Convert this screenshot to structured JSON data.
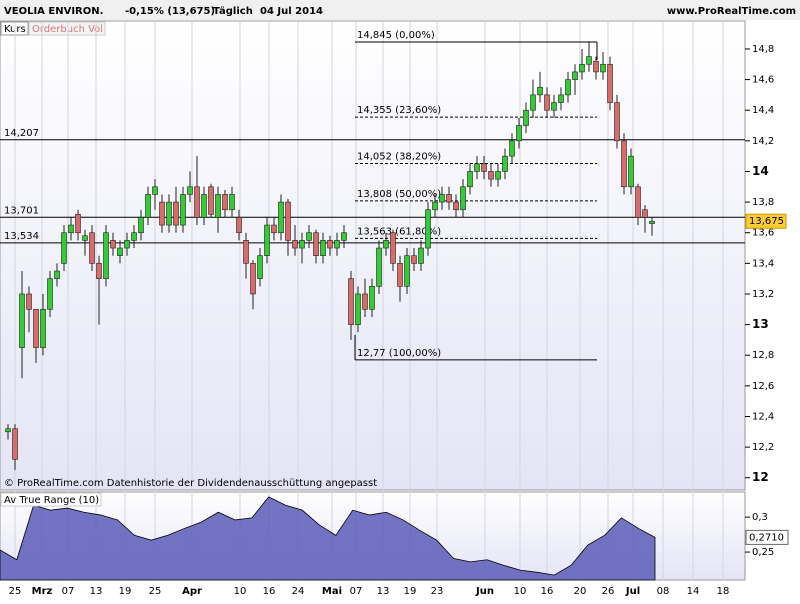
{
  "header": {
    "title": "VEOLIA ENVIRON.",
    "change": "-0,15% (13,675)",
    "period": "Täglich",
    "date": "04 Jul 2014",
    "site": "www.ProRealTime.com"
  },
  "tabs": [
    "Kurs",
    "Orderbuch Vol"
  ],
  "x_labels": [
    "25",
    "Mrz",
    "07",
    "13",
    "19",
    "25",
    "Apr",
    "10",
    "16",
    "24",
    "Mai",
    "07",
    "13",
    "19",
    "23",
    "Jun",
    "10",
    "16",
    "20",
    "26",
    "Jul",
    "08",
    "14",
    "18"
  ],
  "chart_data": [
    {
      "type": "candlestick",
      "open": [
        12.3,
        12.32,
        12.85,
        13.2,
        13.1,
        12.85,
        13.1,
        13.3,
        13.4,
        13.6,
        13.72,
        13.55,
        13.6,
        13.4,
        13.3,
        13.55,
        13.45,
        13.5,
        13.55,
        13.6,
        13.7,
        13.85,
        13.8,
        13.65,
        13.8,
        13.65,
        13.85,
        13.9,
        13.7,
        13.9,
        13.7,
        13.85,
        13.75,
        13.7,
        13.55,
        13.4,
        13.3,
        13.45,
        13.65,
        13.6,
        13.8,
        13.55,
        13.5,
        13.55,
        13.6,
        13.45,
        13.55,
        13.5,
        13.55,
        13.3,
        13.0,
        13.2,
        13.1,
        13.25,
        13.5,
        13.6,
        13.4,
        13.25,
        13.45,
        13.4,
        13.5,
        13.75,
        13.8,
        13.85,
        13.8,
        13.75,
        13.9,
        14.0,
        14.05,
        14.0,
        13.95,
        14.0,
        14.1,
        14.2,
        14.3,
        14.4,
        14.5,
        14.5,
        14.4,
        14.45,
        14.5,
        14.6,
        14.65,
        14.7,
        14.72,
        14.65,
        14.7,
        14.45,
        14.2,
        13.9,
        13.9,
        13.75,
        13.66
      ],
      "high": [
        12.35,
        12.35,
        13.35,
        13.25,
        13.1,
        13.2,
        13.35,
        13.4,
        13.65,
        13.7,
        13.75,
        13.62,
        13.65,
        13.45,
        13.65,
        13.6,
        13.55,
        13.6,
        13.65,
        13.75,
        13.9,
        13.95,
        13.85,
        13.85,
        13.9,
        13.9,
        14.0,
        14.1,
        13.9,
        13.92,
        13.9,
        13.88,
        13.9,
        13.75,
        13.6,
        13.42,
        13.5,
        13.7,
        13.7,
        13.85,
        13.82,
        13.65,
        13.6,
        13.65,
        13.62,
        13.6,
        13.58,
        13.6,
        13.65,
        13.35,
        13.25,
        13.3,
        13.3,
        13.55,
        13.6,
        13.62,
        13.45,
        13.5,
        13.5,
        13.55,
        13.8,
        13.85,
        13.9,
        13.9,
        13.85,
        13.95,
        14.05,
        14.1,
        14.1,
        14.05,
        14.05,
        14.15,
        14.25,
        14.35,
        14.45,
        14.6,
        14.65,
        14.55,
        14.5,
        14.55,
        14.65,
        14.7,
        14.8,
        14.85,
        14.75,
        14.78,
        14.75,
        14.5,
        14.25,
        14.15,
        13.92,
        13.78,
        13.7
      ],
      "low": [
        12.25,
        12.05,
        12.65,
        12.95,
        12.75,
        12.8,
        13.05,
        13.25,
        13.35,
        13.55,
        13.55,
        13.45,
        13.35,
        13.0,
        13.25,
        13.45,
        13.4,
        13.45,
        13.5,
        13.55,
        13.65,
        13.75,
        13.6,
        13.6,
        13.6,
        13.6,
        13.8,
        13.65,
        13.65,
        13.7,
        13.6,
        13.7,
        13.7,
        13.55,
        13.3,
        13.1,
        13.25,
        13.4,
        13.55,
        13.55,
        13.45,
        13.45,
        13.4,
        13.5,
        13.4,
        13.4,
        13.45,
        13.45,
        13.5,
        12.9,
        12.95,
        13.05,
        13.05,
        13.2,
        13.45,
        13.35,
        13.15,
        13.2,
        13.35,
        13.35,
        13.45,
        13.7,
        13.75,
        13.75,
        13.7,
        13.7,
        13.85,
        13.95,
        13.95,
        13.9,
        13.9,
        13.95,
        14.05,
        14.15,
        14.25,
        14.35,
        14.45,
        14.35,
        14.35,
        14.4,
        14.45,
        14.5,
        14.6,
        14.65,
        14.6,
        14.6,
        14.4,
        14.15,
        13.85,
        13.85,
        13.65,
        13.6,
        13.58
      ],
      "close": [
        12.32,
        12.12,
        13.2,
        13.1,
        12.85,
        13.1,
        13.3,
        13.35,
        13.6,
        13.65,
        13.6,
        13.58,
        13.4,
        13.3,
        13.6,
        13.5,
        13.5,
        13.55,
        13.6,
        13.7,
        13.85,
        13.9,
        13.65,
        13.8,
        13.65,
        13.85,
        13.9,
        13.7,
        13.85,
        13.72,
        13.85,
        13.75,
        13.85,
        13.6,
        13.4,
        13.2,
        13.45,
        13.65,
        13.6,
        13.8,
        13.55,
        13.5,
        13.55,
        13.6,
        13.45,
        13.55,
        13.5,
        13.55,
        13.6,
        13.0,
        13.2,
        13.1,
        13.25,
        13.5,
        13.55,
        13.4,
        13.25,
        13.45,
        13.4,
        13.5,
        13.75,
        13.8,
        13.85,
        13.8,
        13.75,
        13.9,
        14.0,
        14.05,
        14.0,
        13.95,
        14.0,
        14.1,
        14.2,
        14.3,
        14.4,
        14.5,
        14.55,
        14.4,
        14.45,
        14.5,
        14.6,
        14.65,
        14.7,
        14.75,
        14.65,
        14.7,
        14.45,
        14.2,
        13.9,
        14.1,
        13.7,
        13.7,
        13.675
      ],
      "up_color": "#33cc33",
      "down_color": "#d96b6b",
      "ylim": [
        11.92,
        14.976
      ],
      "yticks": [
        {
          "value": 14.8,
          "label": "14,8"
        },
        {
          "value": 14.6,
          "label": "14,6"
        },
        {
          "value": 14.4,
          "label": "14,4"
        },
        {
          "value": 14.2,
          "label": "14,2"
        },
        14,
        {
          "value": 13.8,
          "label": "13,8"
        },
        {
          "value": 13.6,
          "label": "13,6"
        },
        {
          "value": 13.4,
          "label": "13,4"
        },
        {
          "value": 13.2,
          "label": "13,2"
        },
        13,
        {
          "value": 12.8,
          "label": "12,8"
        },
        {
          "value": 12.6,
          "label": "12,6"
        },
        {
          "value": 12.4,
          "label": "12,4"
        },
        {
          "value": 12.2,
          "label": "12,2"
        },
        12
      ],
      "levels": [
        {
          "value": 14.207,
          "label": "14,207"
        },
        {
          "value": 13.701,
          "label": "13,701"
        },
        {
          "value": 13.534,
          "label": "13,534"
        }
      ],
      "fibonacci": [
        {
          "value": 14.845,
          "label": "14,845 (0,00%)"
        },
        {
          "value": 14.355,
          "label": "14,355 (23,60%)"
        },
        {
          "value": 14.052,
          "label": "14,052 (38,20%)"
        },
        {
          "value": 13.808,
          "label": "13,808 (50,00%)"
        },
        {
          "value": 13.563,
          "label": "13,563 (61,80%)"
        },
        {
          "value": 12.77,
          "label": "12,77 (100,00%)"
        }
      ],
      "last": {
        "value": 13.675,
        "label": "13,675"
      },
      "footnote": "© ProRealTime.com Datenhistorie der Dividendenausschüttung angepasst"
    },
    {
      "type": "area",
      "title": "Av True Range (10)",
      "color": "#5c5cb8",
      "values": [
        0.253,
        0.239,
        0.317,
        0.31,
        0.313,
        0.307,
        0.303,
        0.296,
        0.274,
        0.267,
        0.274,
        0.284,
        0.293,
        0.307,
        0.296,
        0.299,
        0.329,
        0.317,
        0.31,
        0.289,
        0.274,
        0.31,
        0.303,
        0.307,
        0.296,
        0.281,
        0.267,
        0.241,
        0.236,
        0.239,
        0.231,
        0.224,
        0.221,
        0.217,
        0.231,
        0.26,
        0.274,
        0.299,
        0.284,
        0.271
      ],
      "ylim": [
        0.21,
        0.336
      ],
      "yticks": [
        {
          "value": 0.3,
          "label": "0,3"
        },
        {
          "value": 0.25,
          "label": "0,25"
        }
      ],
      "last": {
        "value": 0.271,
        "label": "0,2710"
      }
    }
  ]
}
